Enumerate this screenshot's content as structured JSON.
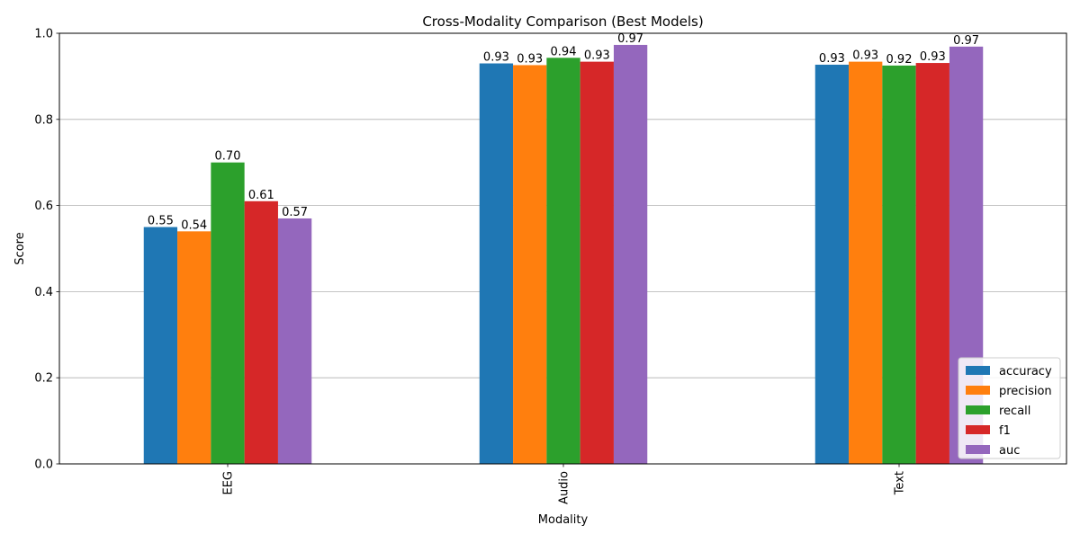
{
  "chart_data": {
    "type": "bar",
    "title": "Cross-Modality Comparison (Best Models)",
    "xlabel": "Modality",
    "ylabel": "Score",
    "ylim": [
      0,
      1.0
    ],
    "yticks": [
      "0.0",
      "0.2",
      "0.4",
      "0.6",
      "0.8",
      "1.0"
    ],
    "grid": "horizontal",
    "legend_position": "lower-right",
    "categories": [
      "EEG",
      "Audio",
      "Text"
    ],
    "series": [
      {
        "name": "accuracy",
        "color": "#1f77b4",
        "values": [
          0.55,
          0.93,
          0.927
        ],
        "labels": [
          "0.55",
          "0.93",
          "0.93"
        ]
      },
      {
        "name": "precision",
        "color": "#ff7f0e",
        "values": [
          0.54,
          0.926,
          0.934
        ],
        "labels": [
          "0.54",
          "0.93",
          "0.93"
        ]
      },
      {
        "name": "recall",
        "color": "#2ca02c",
        "values": [
          0.7,
          0.943,
          0.925
        ],
        "labels": [
          "0.70",
          "0.94",
          "0.92"
        ]
      },
      {
        "name": "f1",
        "color": "#d62728",
        "values": [
          0.61,
          0.934,
          0.931
        ],
        "labels": [
          "0.61",
          "0.93",
          "0.93"
        ]
      },
      {
        "name": "auc",
        "color": "#9467bd",
        "values": [
          0.57,
          0.973,
          0.969
        ],
        "labels": [
          "0.57",
          "0.97",
          "0.97"
        ]
      }
    ]
  }
}
